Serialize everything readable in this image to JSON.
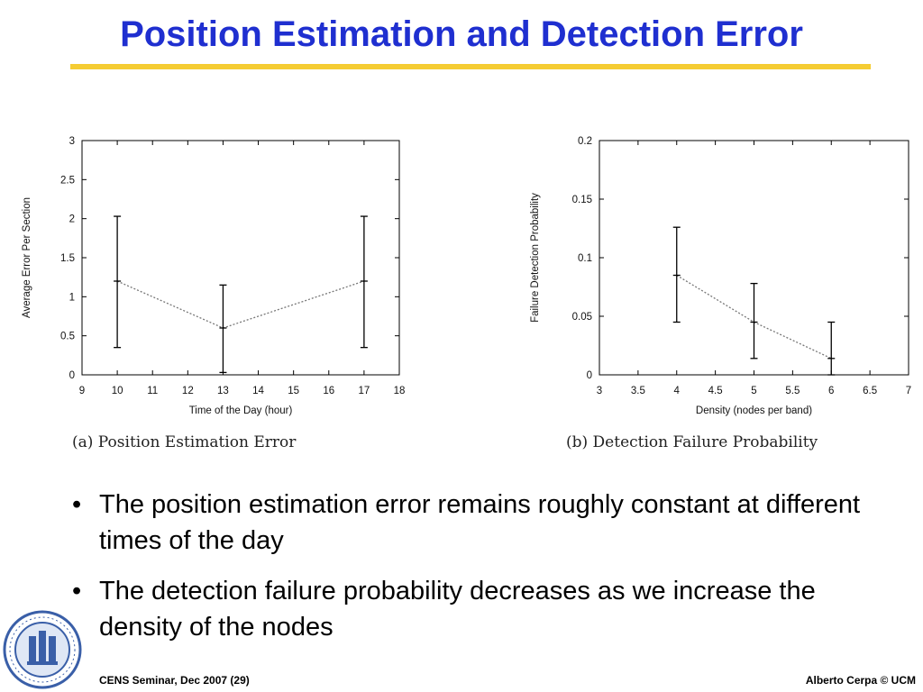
{
  "slide": {
    "title": "Position Estimation and Detection Error",
    "bullets": [
      "The position estimation error remains roughly constant at different times of the day",
      "The detection failure probability decreases as we increase the density of the nodes"
    ],
    "bullet_glyph": "•",
    "footer_left": "CENS Seminar, Dec 2007 (29)",
    "footer_right": "Alberto Cerpa © UCM",
    "logo_lettering": "UNIVERSITY OF CALIFORNIA MERCED",
    "colors": {
      "title": "#1f2fd0",
      "title_rule": "#f5cc33",
      "seal": "#3a5fa8"
    }
  },
  "chart_data": [
    {
      "type": "line",
      "caption": "(a) Position Estimation Error",
      "xlabel": "Time of the Day (hour)",
      "ylabel": "Average Error Per Section",
      "xlim": [
        9,
        18
      ],
      "ylim": [
        0,
        3
      ],
      "xticks": [
        "9",
        "10",
        "11",
        "12",
        "13",
        "14",
        "15",
        "16",
        "17",
        "18"
      ],
      "yticks": [
        "0",
        "0.5",
        "1",
        "1.5",
        "2",
        "2.5",
        "3"
      ],
      "grid": false,
      "points": [
        {
          "x": 10,
          "y": 1.2,
          "low": 0.35,
          "high": 2.03
        },
        {
          "x": 13,
          "y": 0.6,
          "low": 0.03,
          "high": 1.15
        },
        {
          "x": 17,
          "y": 1.2,
          "low": 0.35,
          "high": 2.03
        }
      ]
    },
    {
      "type": "line",
      "caption": "(b) Detection Failure Probability",
      "xlabel": "Density (nodes per band)",
      "ylabel": "Failure Detection Probability",
      "xlim": [
        3,
        7
      ],
      "ylim": [
        0,
        0.2
      ],
      "xticks": [
        "3",
        "3.5",
        "4",
        "4.5",
        "5",
        "5.5",
        "6",
        "6.5",
        "7"
      ],
      "yticks": [
        "0",
        "0.05",
        "0.1",
        "0.15",
        "0.2"
      ],
      "grid": false,
      "points": [
        {
          "x": 4,
          "y": 0.085,
          "low": 0.045,
          "high": 0.126
        },
        {
          "x": 5,
          "y": 0.045,
          "low": 0.014,
          "high": 0.078
        },
        {
          "x": 6,
          "y": 0.014,
          "low": 0.0,
          "high": 0.045
        }
      ]
    }
  ]
}
